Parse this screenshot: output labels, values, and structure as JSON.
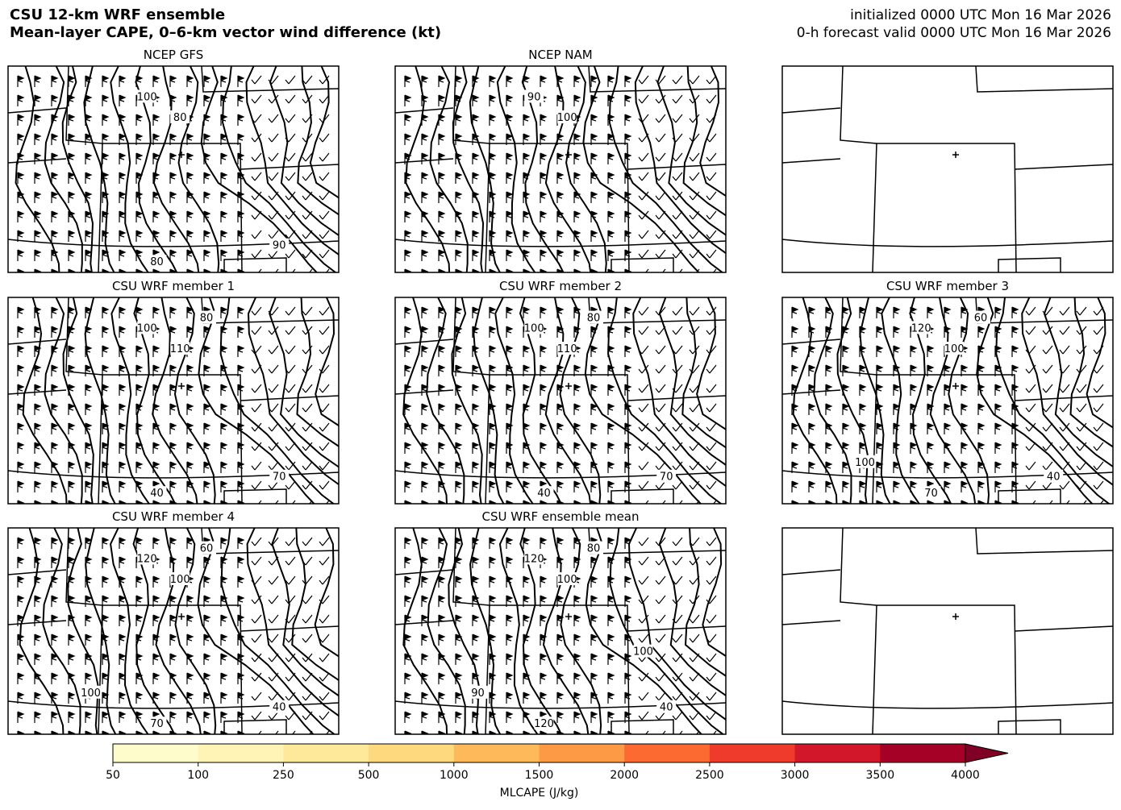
{
  "header": {
    "title": "CSU 12-km WRF ensemble",
    "subtitle": "Mean-layer CAPE, 0–6-km vector wind difference (kt)",
    "init": "initialized 0000 UTC Mon 16 Mar 2026",
    "valid": "0-h forecast valid 0000 UTC Mon 16 Mar 2026"
  },
  "panels": [
    {
      "title": "NCEP GFS",
      "contour_labels": [
        "100",
        "80",
        "80",
        "90"
      ]
    },
    {
      "title": "NCEP NAM",
      "contour_labels": [
        "90",
        "100"
      ]
    },
    {
      "title": null,
      "contour_labels": []
    },
    {
      "title": "CSU WRF member 1",
      "contour_labels": [
        "100",
        "110",
        "40",
        "70",
        "80"
      ]
    },
    {
      "title": "CSU WRF member 2",
      "contour_labels": [
        "100",
        "110",
        "40",
        "70",
        "80"
      ]
    },
    {
      "title": "CSU WRF member 3",
      "contour_labels": [
        "120",
        "100",
        "70",
        "40",
        "60",
        "100"
      ]
    },
    {
      "title": "CSU WRF member 4",
      "contour_labels": [
        "120",
        "100",
        "70",
        "40",
        "60",
        "100"
      ]
    },
    {
      "title": "CSU WRF ensemble mean",
      "contour_labels": [
        "120",
        "100",
        "120",
        "40",
        "80",
        "90",
        "100"
      ]
    },
    {
      "title": null,
      "contour_labels": []
    }
  ],
  "colorbar": {
    "ticks": [
      50,
      100,
      250,
      500,
      1000,
      1500,
      2000,
      2500,
      3000,
      3500,
      4000
    ],
    "colors": [
      "#fffccc",
      "#fff3b5",
      "#fee99a",
      "#fed97e",
      "#feb95a",
      "#fd9a45",
      "#fc6a32",
      "#ef3b2c",
      "#d2172a",
      "#a50026"
    ],
    "extend_color": "#800026",
    "label": "MLCAPE (J/kg)"
  }
}
